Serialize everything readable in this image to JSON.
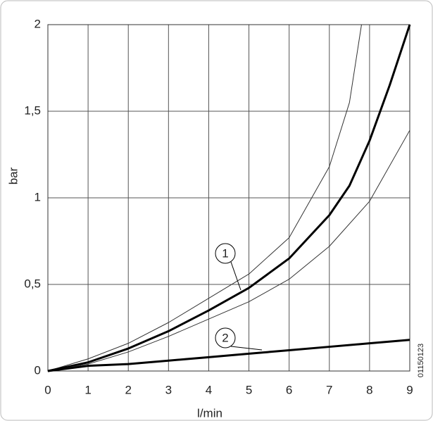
{
  "chart_data": {
    "type": "line",
    "xlabel": "l/min",
    "ylabel": "bar",
    "code": "01150123",
    "xlim": [
      0,
      9
    ],
    "ylim": [
      0,
      2
    ],
    "xticks": [
      0,
      1,
      2,
      3,
      4,
      5,
      6,
      7,
      8,
      9
    ],
    "yticks": [
      0,
      {
        "value": 0.5,
        "label": "0,5"
      },
      1,
      {
        "value": 1.5,
        "label": "1,5"
      },
      2
    ],
    "grid": true,
    "series": [
      {
        "color": "#333333",
        "line_width": 1,
        "x": [
          0,
          1,
          2,
          3,
          4,
          5,
          6,
          7,
          7.5,
          7.8
        ],
        "values": [
          0,
          0.07,
          0.16,
          0.28,
          0.42,
          0.56,
          0.77,
          1.18,
          1.55,
          2.0
        ]
      },
      {
        "color": "#000000",
        "line_width": 3,
        "x": [
          0,
          1,
          2,
          3,
          4,
          5,
          6,
          7,
          7.5,
          8,
          8.5,
          9
        ],
        "values": [
          0,
          0.05,
          0.13,
          0.23,
          0.35,
          0.48,
          0.65,
          0.9,
          1.07,
          1.33,
          1.65,
          2.0
        ]
      },
      {
        "color": "#333333",
        "line_width": 1,
        "x": [
          0,
          1,
          2,
          3,
          4,
          5,
          6,
          7,
          8,
          9
        ],
        "values": [
          0,
          0.04,
          0.11,
          0.2,
          0.3,
          0.4,
          0.53,
          0.72,
          0.98,
          1.39
        ]
      },
      {
        "color": "#000000",
        "line_width": 3,
        "x": [
          0,
          1,
          2,
          3,
          4,
          5,
          6,
          7,
          8,
          9
        ],
        "values": [
          0,
          0.03,
          0.04,
          0.06,
          0.08,
          0.1,
          0.12,
          0.14,
          0.16,
          0.18
        ]
      }
    ],
    "annotations": [
      {
        "text": "1"
      },
      {
        "text": "2"
      }
    ]
  }
}
